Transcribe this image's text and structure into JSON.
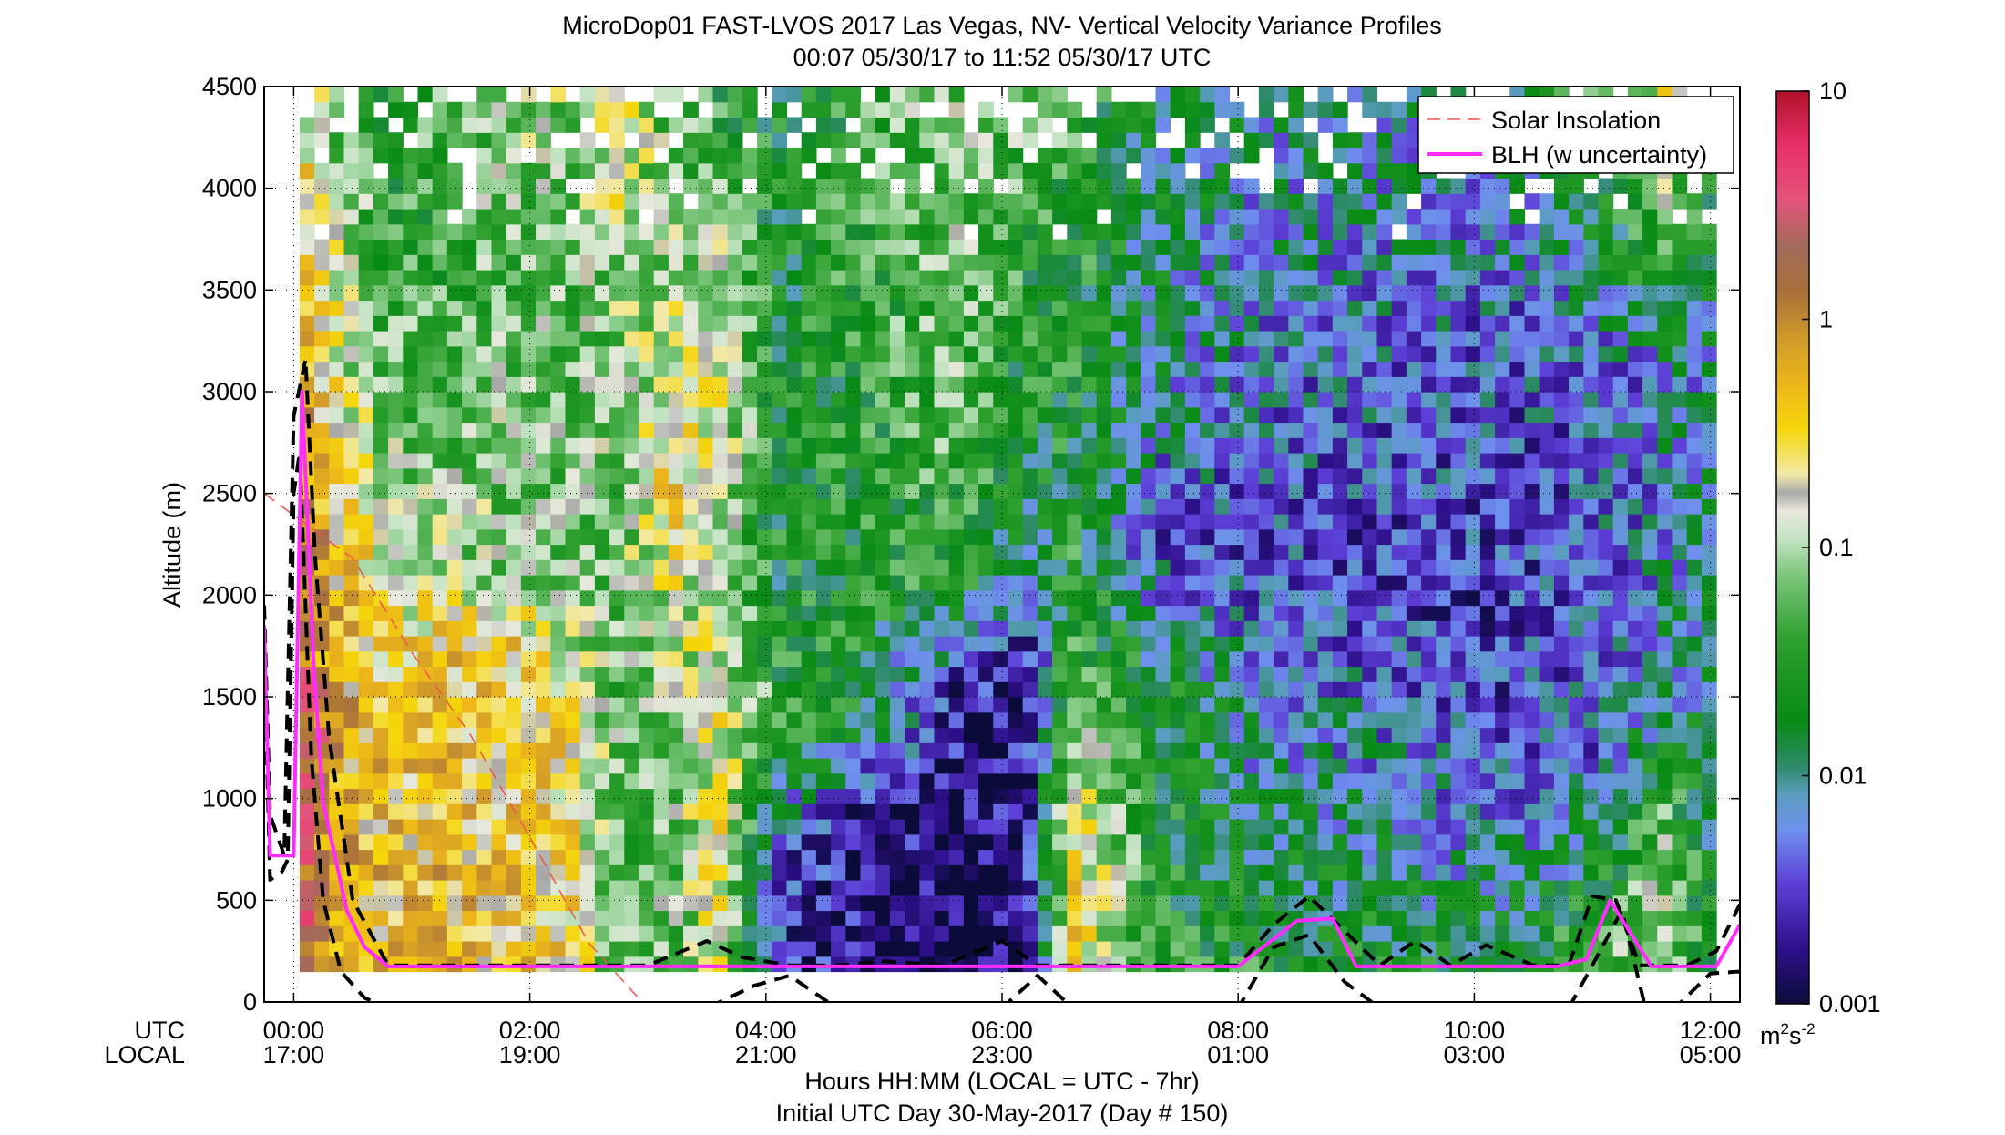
{
  "chart_data": {
    "type": "heatmap",
    "title_line1": "MicroDop01 FAST-LVOS 2017 Las Vegas, NV- Vertical Velocity Variance Profiles",
    "title_line2": "00:07 05/30/17 to 11:52 05/30/17  UTC",
    "ylabel": "Altitude (m)",
    "xlabel_line1": "Hours HH:MM  (LOCAL = UTC - 7hr)",
    "xlabel_line2": "Initial UTC Day 30-May-2017 (Day # 150)",
    "row_label_utc": "UTC",
    "row_label_local": "LOCAL",
    "xlim": [
      -0.25,
      12.25
    ],
    "ylim": [
      0,
      4500
    ],
    "grid": true,
    "y_ticks": [
      0,
      500,
      1000,
      1500,
      2000,
      2500,
      3000,
      3500,
      4000,
      4500
    ],
    "x_ticks": [
      {
        "x": 0,
        "utc": "00:00",
        "local": "17:00"
      },
      {
        "x": 2,
        "utc": "02:00",
        "local": "19:00"
      },
      {
        "x": 4,
        "utc": "04:00",
        "local": "21:00"
      },
      {
        "x": 6,
        "utc": "06:00",
        "local": "23:00"
      },
      {
        "x": 8,
        "utc": "08:00",
        "local": "01:00"
      },
      {
        "x": 10,
        "utc": "10:00",
        "local": "03:00"
      },
      {
        "x": 12,
        "utc": "12:00",
        "local": "05:00"
      }
    ],
    "colorbar": {
      "scale": "log",
      "range": [
        0.001,
        10
      ],
      "ticks": [
        {
          "value": 10,
          "label": "10"
        },
        {
          "value": 1,
          "label": "1"
        },
        {
          "value": 0.1,
          "label": "0.1"
        },
        {
          "value": 0.01,
          "label": "0.01"
        },
        {
          "value": 0.001,
          "label": "0.001"
        }
      ],
      "unit_base": "m",
      "unit_sup1": "2",
      "unit_mid": "s",
      "unit_sup2": "-2",
      "stops": [
        {
          "pos": 0.0,
          "color": "#0b0b3a"
        },
        {
          "pos": 0.06,
          "color": "#2e0f8a"
        },
        {
          "pos": 0.13,
          "color": "#5c3ed6"
        },
        {
          "pos": 0.19,
          "color": "#6f90ee"
        },
        {
          "pos": 0.23,
          "color": "#5a9dbf"
        },
        {
          "pos": 0.26,
          "color": "#2f8a6a"
        },
        {
          "pos": 0.31,
          "color": "#078a14"
        },
        {
          "pos": 0.4,
          "color": "#2fa02f"
        },
        {
          "pos": 0.47,
          "color": "#7cc67c"
        },
        {
          "pos": 0.51,
          "color": "#c4e4c4"
        },
        {
          "pos": 0.54,
          "color": "#e8e8dc"
        },
        {
          "pos": 0.56,
          "color": "#a8a8a8"
        },
        {
          "pos": 0.58,
          "color": "#f2e9a8"
        },
        {
          "pos": 0.63,
          "color": "#f5d60a"
        },
        {
          "pos": 0.68,
          "color": "#ecb51a"
        },
        {
          "pos": 0.73,
          "color": "#cf9a2a"
        },
        {
          "pos": 0.78,
          "color": "#a8703a"
        },
        {
          "pos": 0.83,
          "color": "#a26a5a"
        },
        {
          "pos": 0.88,
          "color": "#e3547a"
        },
        {
          "pos": 0.94,
          "color": "#e8306a"
        },
        {
          "pos": 1.0,
          "color": "#b0102a"
        }
      ]
    },
    "heatmap": {
      "time_step_hours": 0.125,
      "z_start_m": 150,
      "z_step_m": 75,
      "columns": [
        {
          "t": 0.1,
          "top": 4500,
          "profile": [
            [
              150,
              1.6
            ],
            [
              1200,
              2.4
            ],
            [
              2200,
              1.0
            ],
            [
              3000,
              0.5
            ],
            [
              4500,
              0.2
            ]
          ]
        },
        {
          "t": 0.4,
          "top": 4500,
          "profile": [
            [
              150,
              0.6
            ],
            [
              1800,
              0.5
            ],
            [
              2800,
              0.2
            ],
            [
              4500,
              0.05
            ]
          ]
        },
        {
          "t": 0.8,
          "top": 4500,
          "profile": [
            [
              150,
              0.4
            ],
            [
              1500,
              0.35
            ],
            [
              2200,
              0.15
            ],
            [
              3000,
              0.05
            ],
            [
              4500,
              0.03
            ]
          ]
        },
        {
          "t": 1.2,
          "top": 4500,
          "profile": [
            [
              150,
              0.5
            ],
            [
              1700,
              0.35
            ],
            [
              2000,
              0.12
            ],
            [
              3500,
              0.04
            ],
            [
              4500,
              0.04
            ]
          ]
        },
        {
          "t": 1.8,
          "top": 4500,
          "profile": [
            [
              150,
              0.4
            ],
            [
              1800,
              0.3
            ],
            [
              2100,
              0.08
            ],
            [
              3500,
              0.06
            ],
            [
              4500,
              0.1
            ]
          ]
        },
        {
          "t": 2.4,
          "top": 4500,
          "profile": [
            [
              150,
              0.25
            ],
            [
              1500,
              0.25
            ],
            [
              1900,
              0.08
            ],
            [
              3500,
              0.06
            ],
            [
              4500,
              0.1
            ]
          ]
        },
        {
          "t": 2.7,
          "top": 4500,
          "profile": [
            [
              150,
              0.05
            ],
            [
              2000,
              0.06
            ],
            [
              3500,
              0.08
            ],
            [
              4500,
              0.3
            ]
          ]
        },
        {
          "t": 3.2,
          "top": 4500,
          "profile": [
            [
              150,
              0.06
            ],
            [
              1500,
              0.08
            ],
            [
              2500,
              0.3
            ],
            [
              3500,
              0.1
            ],
            [
              4500,
              0.05
            ]
          ]
        },
        {
          "t": 3.6,
          "top": 4500,
          "profile": [
            [
              150,
              0.2
            ],
            [
              1500,
              0.2
            ],
            [
              2000,
              0.1
            ],
            [
              3000,
              0.2
            ],
            [
              4500,
              0.03
            ]
          ]
        },
        {
          "t": 4.1,
          "top": 4500,
          "profile": [
            [
              150,
              0.003
            ],
            [
              700,
              0.004
            ],
            [
              1200,
              0.03
            ],
            [
              2500,
              0.02
            ],
            [
              4500,
              0.02
            ]
          ]
        },
        {
          "t": 4.8,
          "top": 4500,
          "profile": [
            [
              150,
              0.0015
            ],
            [
              900,
              0.002
            ],
            [
              1400,
              0.02
            ],
            [
              3000,
              0.03
            ],
            [
              4500,
              0.04
            ]
          ]
        },
        {
          "t": 5.6,
          "top": 4500,
          "profile": [
            [
              150,
              0.0012
            ],
            [
              1500,
              0.002
            ],
            [
              2000,
              0.03
            ],
            [
              3200,
              0.06
            ],
            [
              4500,
              0.08
            ]
          ]
        },
        {
          "t": 6.2,
          "top": 4500,
          "profile": [
            [
              150,
              0.0015
            ],
            [
              1700,
              0.002
            ],
            [
              2300,
              0.015
            ],
            [
              3500,
              0.03
            ],
            [
              4500,
              0.06
            ]
          ]
        },
        {
          "t": 6.6,
          "top": 4500,
          "profile": [
            [
              150,
              0.3
            ],
            [
              1000,
              0.2
            ],
            [
              1500,
              0.05
            ],
            [
              2500,
              0.02
            ],
            [
              4500,
              0.04
            ]
          ]
        },
        {
          "t": 7.3,
          "top": 4500,
          "profile": [
            [
              150,
              0.03
            ],
            [
              1500,
              0.02
            ],
            [
              2200,
              0.004
            ],
            [
              3000,
              0.01
            ],
            [
              4500,
              0.015
            ]
          ]
        },
        {
          "t": 8.2,
          "top": 4500,
          "profile": [
            [
              150,
              0.03
            ],
            [
              1200,
              0.008
            ],
            [
              2200,
              0.004
            ],
            [
              3200,
              0.006
            ],
            [
              4500,
              0.01
            ]
          ]
        },
        {
          "t": 9.2,
          "top": 4500,
          "profile": [
            [
              150,
              0.02
            ],
            [
              1000,
              0.008
            ],
            [
              2000,
              0.003
            ],
            [
              3000,
              0.005
            ],
            [
              4500,
              0.01
            ]
          ]
        },
        {
          "t": 10.2,
          "top": 4500,
          "profile": [
            [
              150,
              0.02
            ],
            [
              1000,
              0.004
            ],
            [
              2000,
              0.003
            ],
            [
              3000,
              0.004
            ],
            [
              4500,
              0.01
            ]
          ]
        },
        {
          "t": 11.0,
          "top": 4500,
          "profile": [
            [
              150,
              0.04
            ],
            [
              1200,
              0.005
            ],
            [
              2200,
              0.004
            ],
            [
              3200,
              0.005
            ],
            [
              4500,
              0.05
            ]
          ]
        },
        {
          "t": 11.6,
          "top": 4500,
          "profile": [
            [
              150,
              0.15
            ],
            [
              900,
              0.05
            ],
            [
              1500,
              0.008
            ],
            [
              3000,
              0.006
            ],
            [
              4000,
              0.1
            ],
            [
              4500,
              0.2
            ]
          ]
        },
        {
          "t": 12.0,
          "top": 4500,
          "profile": [
            [
              150,
              0.02
            ],
            [
              1500,
              0.01
            ],
            [
              3000,
              0.008
            ],
            [
              4500,
              0.05
            ]
          ]
        }
      ]
    },
    "series": [
      {
        "name": "Solar Insolation",
        "style": "dashed",
        "color": "#f0554a",
        "x": [
          -0.25,
          0.5,
          1.0,
          1.5,
          2.0,
          2.5,
          2.95
        ],
        "y": [
          2500,
          2180,
          1720,
          1310,
          810,
          290,
          0
        ]
      },
      {
        "name": "BLH (w uncertainty)",
        "style": "solid",
        "color": "#ff2bff",
        "x": [
          -0.25,
          -0.2,
          -0.08,
          0.0,
          0.07,
          0.17,
          0.25,
          0.45,
          0.6,
          0.8,
          1.0,
          1.5,
          2.0,
          2.5,
          3.0,
          3.5,
          4.0,
          4.5,
          5.0,
          5.5,
          6.0,
          6.5,
          7.0,
          7.5,
          8.0,
          8.3,
          8.5,
          8.8,
          9.0,
          9.5,
          10.0,
          10.5,
          10.7,
          10.95,
          11.15,
          11.5,
          11.75,
          12.05,
          12.25
        ],
        "y": [
          1850,
          720,
          720,
          720,
          3000,
          1650,
          980,
          450,
          270,
          175,
          175,
          175,
          175,
          175,
          175,
          175,
          175,
          175,
          175,
          175,
          175,
          175,
          175,
          175,
          175,
          310,
          400,
          410,
          175,
          175,
          175,
          175,
          175,
          210,
          500,
          175,
          175,
          175,
          380
        ]
      },
      {
        "name": "BLH upper bound",
        "style": "dashed",
        "color": "#000000",
        "x": [
          -0.25,
          -0.2,
          -0.08,
          0.0,
          0.1,
          0.18,
          0.3,
          0.5,
          0.8,
          1.5,
          2.0,
          2.5,
          3.0,
          3.5,
          3.8,
          4.2,
          4.6,
          5.0,
          5.5,
          6.0,
          6.3,
          6.7,
          7.2,
          7.7,
          8.0,
          8.3,
          8.6,
          8.9,
          9.2,
          9.5,
          9.8,
          10.1,
          10.5,
          10.8,
          11.0,
          11.2,
          11.4,
          11.6,
          11.8,
          12.05,
          12.25
        ],
        "y": [
          1950,
          920,
          720,
          2880,
          3160,
          2200,
          1300,
          500,
          180,
          180,
          180,
          180,
          180,
          300,
          220,
          180,
          180,
          200,
          180,
          300,
          180,
          180,
          180,
          180,
          180,
          380,
          520,
          350,
          180,
          300,
          180,
          280,
          180,
          180,
          520,
          500,
          180,
          180,
          180,
          250,
          480
        ]
      },
      {
        "name": "BLH lower bound",
        "style": "dashed",
        "color": "#000000",
        "x": [
          -0.25,
          -0.2,
          -0.1,
          -0.05,
          0.0,
          0.05,
          0.15,
          0.25,
          0.4,
          0.6,
          0.8,
          1.0,
          1.5,
          2.0,
          2.5,
          3.0,
          3.5,
          3.9,
          4.2,
          4.6,
          5.0,
          5.5,
          6.0,
          6.3,
          6.6,
          7.0,
          7.5,
          8.0,
          8.3,
          8.6,
          8.9,
          9.2,
          9.4,
          9.6,
          10.0,
          10.4,
          10.8,
          11.0,
          11.25,
          11.45,
          11.7,
          12.0,
          12.25
        ],
        "y": [
          1700,
          600,
          640,
          700,
          2500,
          2700,
          1200,
          500,
          150,
          20,
          -30,
          -30,
          -30,
          -30,
          -30,
          -30,
          -30,
          80,
          130,
          -30,
          -30,
          -30,
          -30,
          130,
          -30,
          -30,
          -30,
          -30,
          270,
          330,
          100,
          -30,
          -30,
          -30,
          -30,
          -30,
          -30,
          180,
          450,
          -30,
          -30,
          140,
          150
        ]
      }
    ],
    "legend": {
      "position": "top-right",
      "entries": [
        {
          "label": "Solar Insolation",
          "style": "dashed",
          "color": "#f0554a"
        },
        {
          "label": "BLH (w uncertainty)",
          "style": "solid",
          "color": "#ff2bff"
        }
      ]
    }
  }
}
